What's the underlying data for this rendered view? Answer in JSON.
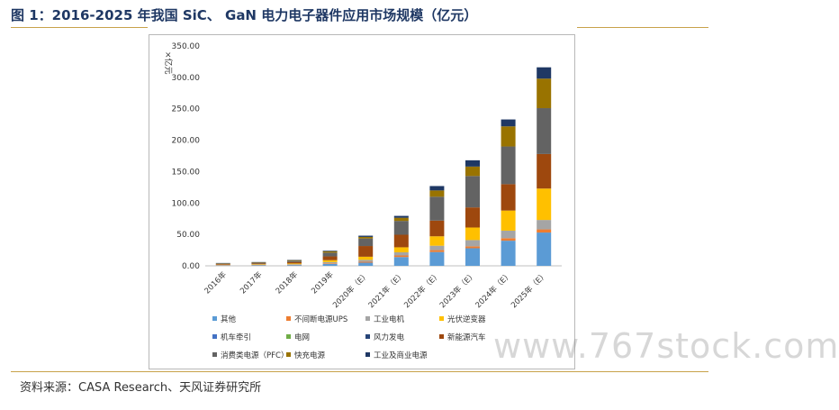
{
  "header": {
    "title": "图 1：2016-2025 年我国 SiC、 GaN 电力电子器件应用市场规模（亿元）"
  },
  "footer": {
    "source": "资料来源：CASA Research、天风证券研究所"
  },
  "watermark": {
    "text": "www.767stock.com"
  },
  "chart_data": {
    "type": "bar",
    "stacked": true,
    "title": "",
    "xlabel": "",
    "ylabel": "×亿元",
    "ylim": [
      0,
      350
    ],
    "yticks": [
      "0.00",
      "50.00",
      "100.00",
      "150.00",
      "200.00",
      "250.00",
      "300.00",
      "350.00"
    ],
    "grid": false,
    "legend_position": "bottom",
    "categories": [
      "2016年",
      "2017年",
      "2018年",
      "2019年",
      "2020年（E）",
      "2021年（E）",
      "2022年（E）",
      "2023年（E）",
      "2024年（E）",
      "2025年（E）"
    ],
    "series": [
      {
        "name": "其他",
        "color": "#5b9bd5",
        "values": [
          0.5,
          0.8,
          1.2,
          3,
          5,
          14,
          22,
          28,
          40,
          53
        ]
      },
      {
        "name": "不间断电源UPS",
        "color": "#ed7d31",
        "values": [
          0.3,
          0.4,
          0.5,
          1,
          1.5,
          2.5,
          3,
          3,
          4,
          5
        ]
      },
      {
        "name": "工业电机",
        "color": "#a5a5a5",
        "values": [
          0.5,
          0.6,
          0.9,
          2,
          3,
          5,
          7,
          10,
          12,
          15
        ]
      },
      {
        "name": "光伏逆变器",
        "color": "#ffc000",
        "values": [
          0.5,
          0.8,
          1.2,
          3,
          5,
          8,
          15,
          20,
          32,
          50
        ]
      },
      {
        "name": "机车牵引",
        "color": "#4472c4",
        "values": [
          0,
          0,
          0,
          0,
          0,
          0,
          0,
          0,
          0,
          0
        ]
      },
      {
        "name": "电网",
        "color": "#70ad47",
        "values": [
          0,
          0,
          0,
          0,
          0,
          0,
          0,
          0,
          0,
          0
        ]
      },
      {
        "name": "风力发电",
        "color": "#264478",
        "values": [
          0,
          0,
          0,
          0,
          0,
          0,
          0,
          0,
          0,
          0
        ]
      },
      {
        "name": "新能源汽车",
        "color": "#9e480e",
        "values": [
          1,
          1.2,
          2.2,
          6,
          17,
          20,
          25,
          32,
          42,
          55
        ]
      },
      {
        "name": "消费类电源（PFC）",
        "color": "#636363",
        "values": [
          1,
          1.2,
          2,
          6,
          12,
          22,
          38,
          50,
          60,
          73
        ]
      },
      {
        "name": "快充电源",
        "color": "#997300",
        "values": [
          0.4,
          0.6,
          1,
          2,
          2.5,
          5,
          10,
          15,
          32,
          47
        ]
      },
      {
        "name": "工业及商业电源",
        "color": "#1f3864",
        "values": [
          0.3,
          0.4,
          0.5,
          1,
          2,
          3,
          7,
          10,
          11,
          18
        ]
      }
    ]
  }
}
